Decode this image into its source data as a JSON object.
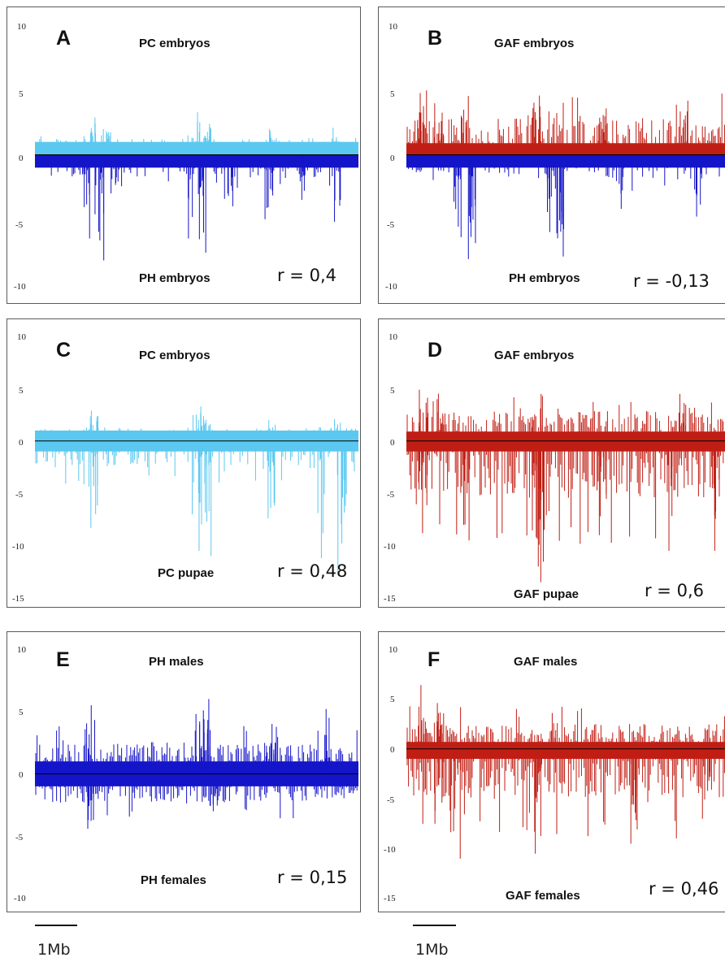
{
  "colors": {
    "light_blue": "#5bc8f0",
    "dark_blue": "#1414c8",
    "red": "#c01e14"
  },
  "scale_bars": [
    "1Mb",
    "1Mb"
  ],
  "chart_data": [
    {
      "id": "A",
      "type": "bar",
      "letter": "A",
      "top_label": "PC embryos",
      "bottom_label": "PH embryos",
      "r_label": "r = 0,4",
      "ylim": [
        -10,
        10
      ],
      "yticks": [
        "10",
        "5",
        "0",
        "-5",
        "-10"
      ],
      "series": [
        {
          "name": "PC embryos",
          "color": "light_blue",
          "direction": "up",
          "band": 1.0,
          "seed": 11,
          "density": 0.16,
          "base": 0.3,
          "clusters": [
            [
              0.18,
              2.9
            ],
            [
              0.22,
              2.0
            ],
            [
              0.5,
              3.3
            ],
            [
              0.53,
              2.4
            ],
            [
              0.73,
              2.0
            ],
            [
              0.93,
              2.1
            ]
          ]
        },
        {
          "name": "PH embryos",
          "color": "dark_blue",
          "direction": "down",
          "band": 1.0,
          "seed": 23,
          "density": 0.2,
          "base": 0.8,
          "clusters": [
            [
              0.16,
              6.5
            ],
            [
              0.2,
              8.2
            ],
            [
              0.25,
              3.0
            ],
            [
              0.48,
              6.5
            ],
            [
              0.52,
              7.6
            ],
            [
              0.6,
              4.0
            ],
            [
              0.72,
              5.0
            ],
            [
              0.82,
              3.5
            ],
            [
              0.94,
              5.2
            ]
          ]
        }
      ]
    },
    {
      "id": "B",
      "type": "bar",
      "letter": "B",
      "top_label": "GAF embryos",
      "bottom_label": "PH embryos",
      "r_label": "r = -0,13",
      "ylim": [
        -10,
        10
      ],
      "yticks": [
        "10",
        "5",
        "0",
        "-5",
        "-10"
      ],
      "series": [
        {
          "name": "GAF embryos",
          "color": "red",
          "direction": "up",
          "band": 0.9,
          "seed": 37,
          "density": 0.62,
          "base": 2.0,
          "clusters": [
            [
              0.05,
              5.0
            ],
            [
              0.1,
              4.0
            ],
            [
              0.18,
              3.5
            ],
            [
              0.4,
              4.6
            ],
            [
              0.6,
              3.6
            ],
            [
              0.85,
              4.2
            ]
          ]
        },
        {
          "name": "PH embryos",
          "color": "dark_blue",
          "direction": "down",
          "band": 1.0,
          "seed": 53,
          "density": 0.22,
          "base": 0.9,
          "clusters": [
            [
              0.16,
              6.4
            ],
            [
              0.2,
              8.1
            ],
            [
              0.43,
              6.0
            ],
            [
              0.47,
              7.9
            ],
            [
              0.65,
              4.2
            ],
            [
              0.9,
              4.8
            ]
          ]
        }
      ]
    },
    {
      "id": "C",
      "type": "bar",
      "letter": "C",
      "top_label": "PC embryos",
      "bottom_label": "PC pupae",
      "r_label": "r = 0,48",
      "ylim": [
        -15,
        10
      ],
      "yticks": [
        "10",
        "5",
        "0",
        "-5",
        "-10",
        "-15"
      ],
      "series": [
        {
          "name": "PC embryos",
          "color": "light_blue",
          "direction": "up",
          "band": 1.0,
          "seed": 61,
          "density": 0.16,
          "base": 0.3,
          "clusters": [
            [
              0.18,
              2.9
            ],
            [
              0.5,
              3.3
            ],
            [
              0.53,
              2.4
            ],
            [
              0.73,
              2.0
            ],
            [
              0.93,
              2.1
            ]
          ]
        },
        {
          "name": "PC pupae",
          "color": "light_blue",
          "direction": "down",
          "band": 1.0,
          "seed": 71,
          "density": 0.42,
          "base": 1.6,
          "clusters": [
            [
              0.18,
              8.3
            ],
            [
              0.5,
              10.5
            ],
            [
              0.53,
              11.0
            ],
            [
              0.73,
              7.4
            ],
            [
              0.88,
              11.2
            ],
            [
              0.95,
              12.8
            ]
          ]
        }
      ]
    },
    {
      "id": "D",
      "type": "bar",
      "letter": "D",
      "top_label": "GAF embryos",
      "bottom_label": "GAF pupae",
      "r_label": "r = 0,6",
      "ylim": [
        -15,
        10
      ],
      "yticks": [
        "10",
        "5",
        "0",
        "-5",
        "-10",
        "-15"
      ],
      "series": [
        {
          "name": "GAF embryos",
          "color": "red",
          "direction": "up",
          "band": 0.9,
          "seed": 83,
          "density": 0.65,
          "base": 2.0,
          "clusters": [
            [
              0.05,
              4.9
            ],
            [
              0.1,
              4.0
            ],
            [
              0.4,
              4.5
            ],
            [
              0.85,
              4.5
            ]
          ]
        },
        {
          "name": "GAF pupae",
          "color": "red",
          "direction": "down",
          "band": 1.0,
          "seed": 97,
          "density": 0.72,
          "base": 4.5,
          "clusters": [
            [
              0.05,
              8.8
            ],
            [
              0.18,
              9.5
            ],
            [
              0.4,
              12.0
            ],
            [
              0.41,
              13.5
            ],
            [
              0.6,
              9.0
            ],
            [
              0.8,
              10.5
            ],
            [
              0.95,
              10.5
            ]
          ]
        }
      ]
    },
    {
      "id": "E",
      "type": "bar",
      "letter": "E",
      "top_label": "PH males",
      "bottom_label": "PH females",
      "r_label": "r = 0,15",
      "ylim": [
        -10,
        10
      ],
      "yticks": [
        "10",
        "5",
        "0",
        "-5",
        "-10"
      ],
      "series": [
        {
          "name": "PH males",
          "color": "dark_blue",
          "direction": "up",
          "band": 1.0,
          "seed": 101,
          "density": 0.6,
          "base": 1.5,
          "clusters": [
            [
              0.17,
              5.5
            ],
            [
              0.5,
              4.8
            ],
            [
              0.53,
              6.0
            ],
            [
              0.73,
              4.0
            ],
            [
              0.9,
              5.2
            ]
          ]
        },
        {
          "name": "PH females",
          "color": "dark_blue",
          "direction": "down",
          "band": 1.0,
          "seed": 113,
          "density": 0.55,
          "base": 1.3,
          "clusters": [
            [
              0.17,
              4.4
            ],
            [
              0.55,
              3.0
            ]
          ]
        }
      ]
    },
    {
      "id": "F",
      "type": "bar",
      "letter": "F",
      "top_label": "GAF males",
      "bottom_label": "GAF females",
      "r_label": "r = 0,46",
      "ylim": [
        -15,
        10
      ],
      "yticks": [
        "10",
        "5",
        "0",
        "-5",
        "-10",
        "-15"
      ],
      "series": [
        {
          "name": "GAF males",
          "color": "red",
          "direction": "up",
          "band": 0.7,
          "seed": 127,
          "density": 0.7,
          "base": 1.8,
          "clusters": [
            [
              0.05,
              6.4
            ],
            [
              0.1,
              4.6
            ],
            [
              0.45,
              3.6
            ]
          ]
        },
        {
          "name": "GAF females",
          "color": "red",
          "direction": "down",
          "band": 1.0,
          "seed": 131,
          "density": 0.75,
          "base": 4.0,
          "clusters": [
            [
              0.1,
              7.5
            ],
            [
              0.15,
              11.0
            ],
            [
              0.4,
              10.5
            ],
            [
              0.7,
              9.5
            ],
            [
              0.92,
              7.0
            ]
          ]
        }
      ]
    }
  ]
}
